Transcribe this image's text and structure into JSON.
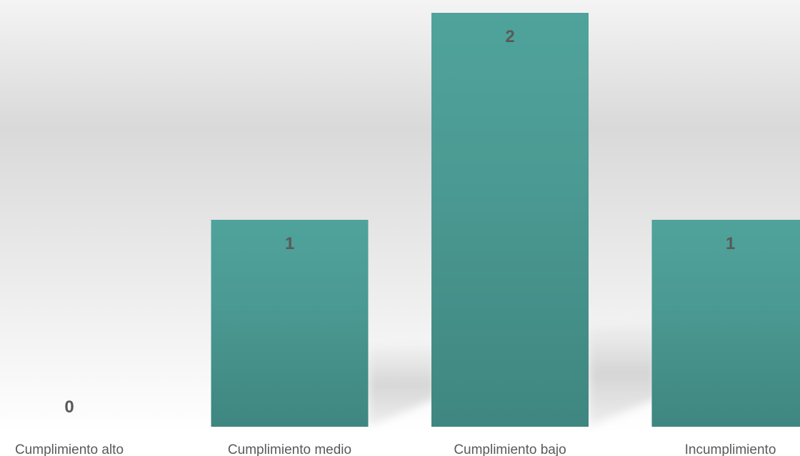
{
  "chart_data": {
    "type": "bar",
    "categories": [
      "Cumplimiento alto",
      "Cumplimiento medio",
      "Cumplimiento bajo",
      "Incumplimiento"
    ],
    "values": [
      0,
      1,
      2,
      1
    ],
    "title": "",
    "xlabel": "",
    "ylabel": "",
    "ylim": [
      0,
      2
    ],
    "grid": false,
    "legend": "none",
    "colors": {
      "bar_top": "#4fa39b",
      "bar_bottom": "#3f8680",
      "label_text": "#595959",
      "background_top": "#f4f4f4",
      "background_mid": "#d9d9d9",
      "background_bottom": "#ffffff"
    }
  }
}
